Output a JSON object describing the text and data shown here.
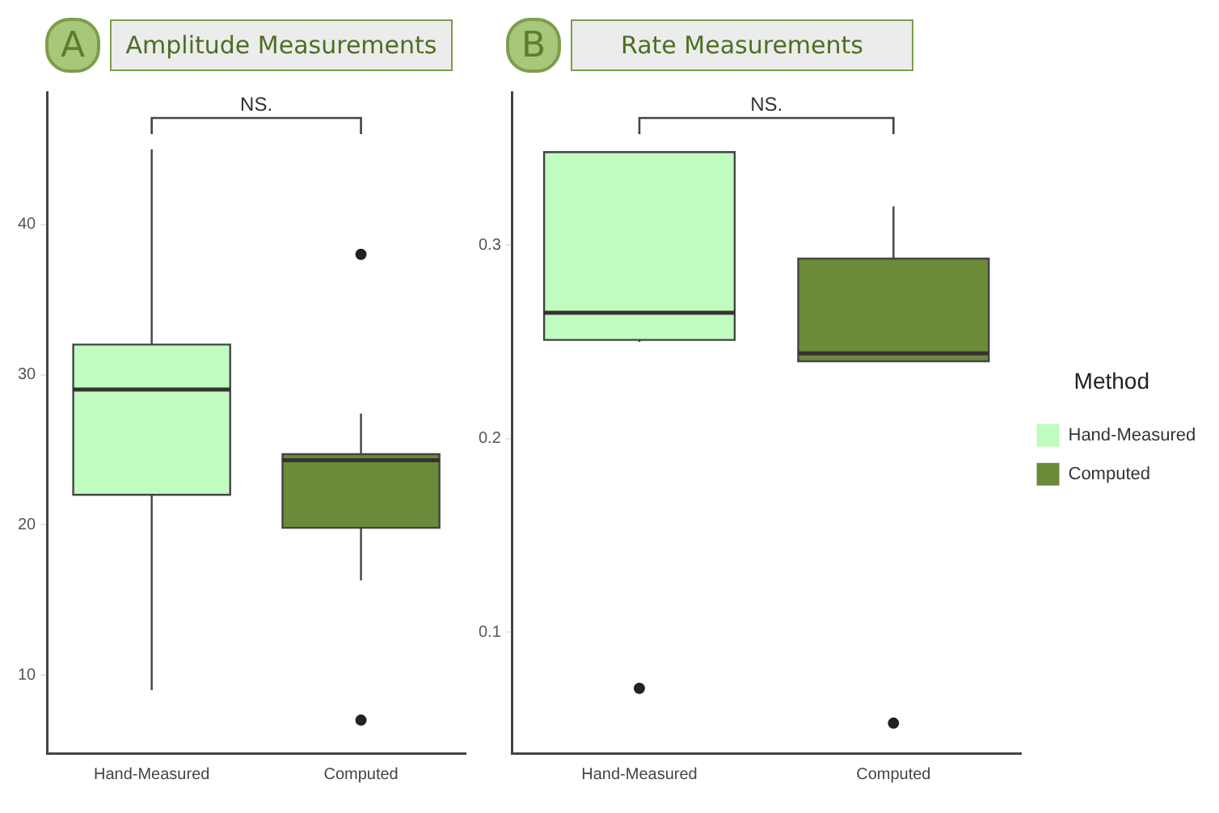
{
  "chart_data": [
    {
      "type": "box",
      "title": "Amplitude Measurements",
      "categories": [
        "Hand-Measured",
        "Computed"
      ],
      "annotations": [
        "A",
        "NS."
      ],
      "legend": false,
      "grid": false,
      "ylim": [
        4.8,
        48.8
      ],
      "yticks": [
        10,
        20,
        30,
        40
      ],
      "series": [
        {
          "color": "#c0fcc0",
          "boxes": [
            {
              "low": 9,
              "q1": 22,
              "median": 29,
              "q3": 32,
              "high": 45
            },
            null
          ]
        },
        {
          "color": "#6b8a3a",
          "boxes": [
            null,
            {
              "low": 16.3,
              "q1": 19.8,
              "median": 24.3,
              "q3": 24.7,
              "high": 27.4,
              "outliers": [
                38,
                7
              ]
            }
          ]
        }
      ]
    },
    {
      "type": "box",
      "title": "Rate Measurements",
      "categories": [
        "Hand-Measured",
        "Computed"
      ],
      "annotations": [
        "B",
        "NS."
      ],
      "legend": "right",
      "legend_title": "Method",
      "grid": false,
      "ylim": [
        0.0375,
        0.379
      ],
      "yticks": [
        0.1,
        0.2,
        0.3
      ],
      "series": [
        {
          "name": "Hand-Measured",
          "color": "#c0fcc0",
          "boxes": [
            {
              "low": 0.25,
              "q1": 0.251,
              "median": 0.265,
              "q3": 0.348,
              "high": 0.348,
              "outliers": [
                0.071
              ]
            },
            null
          ]
        },
        {
          "name": "Computed",
          "color": "#6b8a3a",
          "boxes": [
            null,
            {
              "low": 0.24,
              "q1": 0.24,
              "median": 0.244,
              "q3": 0.293,
              "high": 0.32,
              "outliers": [
                0.053
              ]
            }
          ]
        }
      ]
    }
  ]
}
